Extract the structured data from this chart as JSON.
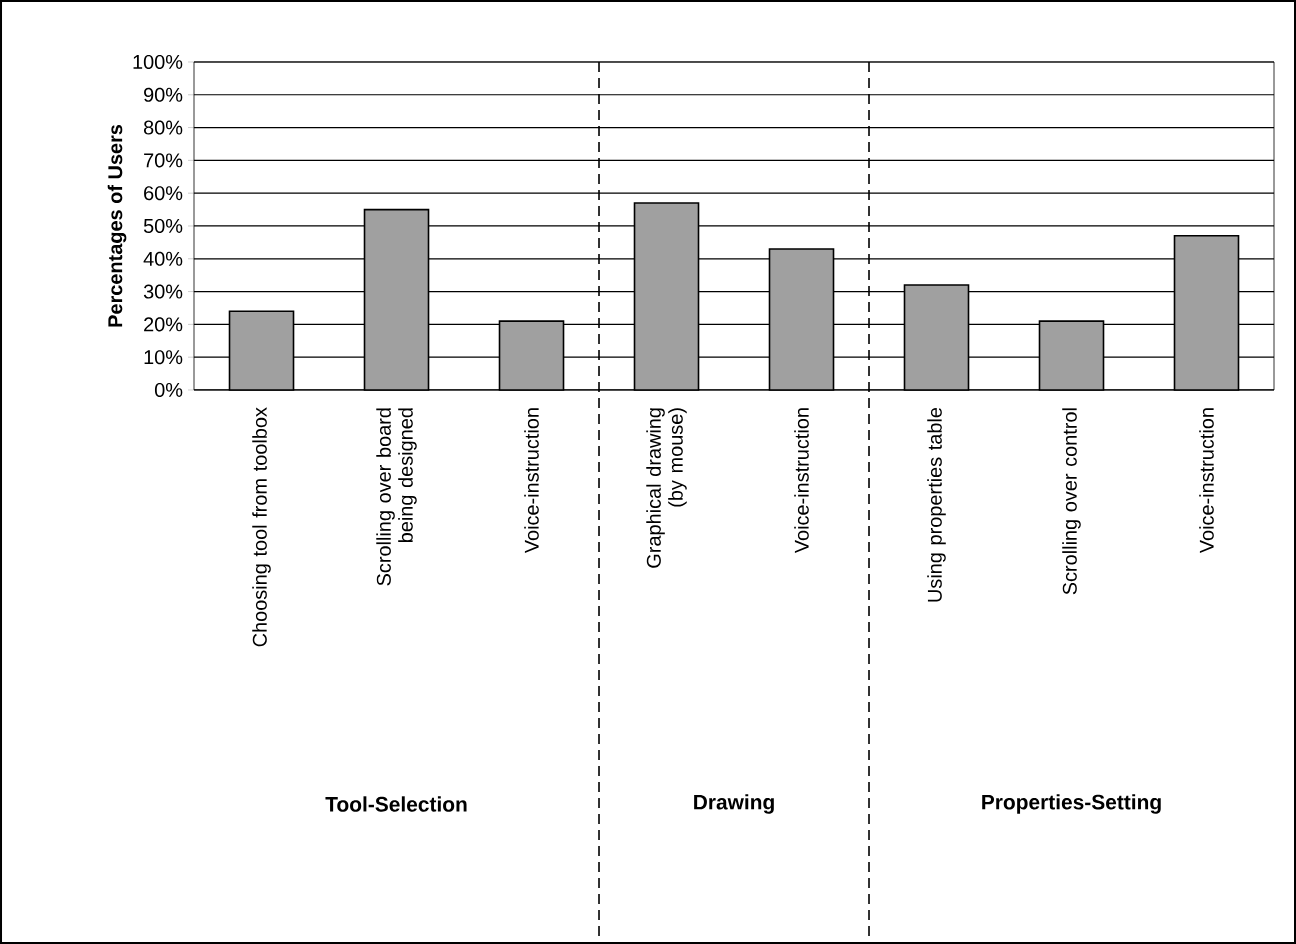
{
  "chart_data": {
    "type": "bar",
    "ylabel": "Percentages of Users",
    "categories": [
      "Choosing tool from toolbox",
      "Scrolling over board being designed",
      "Voice-instruction",
      "Graphical drawing (by mouse)",
      "Voice-instruction",
      "Using properties table",
      "Scrolling over control",
      "Voice-instruction"
    ],
    "values": [
      24,
      55,
      21,
      57,
      43,
      32,
      21,
      47
    ],
    "color": "#a0a0a0",
    "ylim": [
      0,
      100
    ],
    "yticks": [
      {
        "value": 0,
        "label": "0%"
      },
      {
        "value": 10,
        "label": "10%"
      },
      {
        "value": 20,
        "label": "20%"
      },
      {
        "value": 30,
        "label": "30%"
      },
      {
        "value": 40,
        "label": "40%"
      },
      {
        "value": 50,
        "label": "50%"
      },
      {
        "value": 60,
        "label": "60%"
      },
      {
        "value": 70,
        "label": "70%"
      },
      {
        "value": 80,
        "label": "80%"
      },
      {
        "value": 90,
        "label": "90%"
      },
      {
        "value": 100,
        "label": "100%"
      }
    ],
    "grid": "y",
    "annotations": [
      "Tool-Selection",
      "Drawing",
      "Properties-Setting"
    ]
  }
}
